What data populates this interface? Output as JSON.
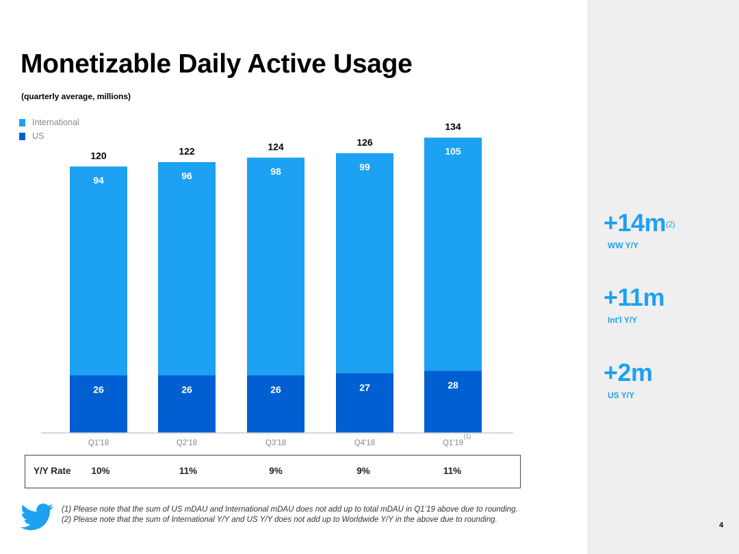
{
  "slide": {
    "title": "Monetizable Daily Active Usage",
    "subtitle": "(quarterly average, millions)",
    "page_number": "4"
  },
  "chart_data": {
    "type": "bar",
    "stacked": true,
    "categories": [
      "Q1'18",
      "Q2'18",
      "Q3'18",
      "Q4'18",
      "Q1'19"
    ],
    "category_footnotes": [
      "",
      "",
      "",
      "",
      "(1)"
    ],
    "series": [
      {
        "name": "US",
        "color": "#005fd1",
        "values": [
          26,
          26,
          26,
          27,
          28
        ]
      },
      {
        "name": "International",
        "color": "#1da1f2",
        "values": [
          94,
          96,
          98,
          99,
          105
        ]
      }
    ],
    "totals": [
      120,
      122,
      124,
      126,
      134
    ],
    "legend": [
      "International",
      "US"
    ],
    "legend_position": "top-left",
    "ylim": [
      0,
      134
    ]
  },
  "yy_rate": {
    "label": "Y/Y Rate",
    "values": [
      "10%",
      "11%",
      "9%",
      "9%",
      "11%"
    ]
  },
  "stats": [
    {
      "value": "+14m",
      "sup": "(2)",
      "label": "WW Y/Y"
    },
    {
      "value": "+11m",
      "sup": "",
      "label": "Int'l Y/Y"
    },
    {
      "value": "+2m",
      "sup": "",
      "label": "US Y/Y"
    }
  ],
  "footnotes": [
    "(1) Please note that the sum of US mDAU and International mDAU does not add up to total mDAU in Q1’19 above due to rounding.",
    "(2) Please note that the sum of International Y/Y and US Y/Y does not add up to Worldwide Y/Y in the above due to rounding."
  ],
  "colors": {
    "international": "#1da1f2",
    "us": "#005fd1",
    "accent": "#1da1f2",
    "panel": "#efefef"
  },
  "icons": {
    "logo": "twitter-bird-icon"
  }
}
